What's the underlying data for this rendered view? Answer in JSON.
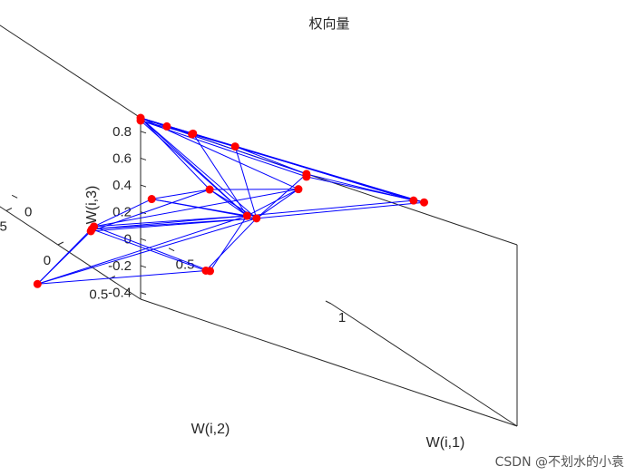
{
  "chart_data": {
    "type": "scatter",
    "subtype": "3d-scatter-with-network-lines",
    "title": "权向量",
    "xlabel": "W(i,1)",
    "ylabel": "W(i,2)",
    "zlabel": "W(i,3)",
    "xlim": [
      -0.2,
      1
    ],
    "ylim": [
      -1,
      0.8
    ],
    "zlim": [
      -0.45,
      0.9
    ],
    "x_ticks": [
      "0",
      "0.5",
      "1"
    ],
    "y_ticks": [
      "0.5",
      "0",
      "-0.5"
    ],
    "z_ticks": [
      "0.8",
      "0.6",
      "0.4",
      "0.2",
      "0",
      "-0.2",
      "-0.4"
    ],
    "x_tick_values": [
      0,
      0.5,
      1
    ],
    "y_tick_values": [
      0.5,
      0,
      -0.5
    ],
    "z_tick_values": [
      0.8,
      0.6,
      0.4,
      0.2,
      0,
      -0.2,
      -0.4
    ],
    "grid": false,
    "marker_color": "#ff0000",
    "line_color": "#0000ff",
    "points": [
      {
        "x": -0.2,
        "y": 0.8,
        "z": 0.9
      },
      {
        "x": -0.2,
        "y": 0.8,
        "z": 0.88
      },
      {
        "x": -0.1,
        "y": 0.75,
        "z": 0.89
      },
      {
        "x": 0.0,
        "y": 0.7,
        "z": 0.89
      },
      {
        "x": 0.0,
        "y": 0.69,
        "z": 0.88
      },
      {
        "x": 0.2,
        "y": 0.5,
        "z": 0.85
      },
      {
        "x": 0.5,
        "y": 0.28,
        "z": 0.77
      },
      {
        "x": 0.5,
        "y": 0.28,
        "z": 0.75
      },
      {
        "x": 0.55,
        "y": 0.05,
        "z": 0.58
      },
      {
        "x": 0.95,
        "y": -0.05,
        "z": 0.76
      },
      {
        "x": 1.0,
        "y": -0.1,
        "z": 0.76
      },
      {
        "x": 0.35,
        "y": 0.16,
        "z": 0.28
      },
      {
        "x": 0.4,
        "y": 0.1,
        "z": 0.27
      },
      {
        "x": 0.3,
        "y": -0.05,
        "z": 0.33
      },
      {
        "x": 0.0,
        "y": 0.3,
        "z": 0.2
      },
      {
        "x": -0.25,
        "y": 0.5,
        "z": -0.1
      },
      {
        "x": -0.25,
        "y": 0.48,
        "z": -0.13
      },
      {
        "x": -0.25,
        "y": 0.47,
        "z": -0.15
      },
      {
        "x": 0.4,
        "y": -0.35,
        "z": -0.35
      },
      {
        "x": 0.39,
        "y": -0.36,
        "z": -0.36
      },
      {
        "x": -0.15,
        "y": -0.35,
        "z": -0.88
      }
    ],
    "edges": [
      [
        0,
        2
      ],
      [
        0,
        3
      ],
      [
        0,
        5
      ],
      [
        0,
        6
      ],
      [
        0,
        8
      ],
      [
        0,
        9
      ],
      [
        0,
        10
      ],
      [
        0,
        11
      ],
      [
        0,
        12
      ],
      [
        0,
        13
      ],
      [
        1,
        4
      ],
      [
        1,
        7
      ],
      [
        1,
        11
      ],
      [
        2,
        3
      ],
      [
        3,
        4
      ],
      [
        4,
        5
      ],
      [
        5,
        6
      ],
      [
        6,
        7
      ],
      [
        6,
        9
      ],
      [
        7,
        10
      ],
      [
        3,
        9
      ],
      [
        4,
        10
      ],
      [
        3,
        11
      ],
      [
        5,
        12
      ],
      [
        6,
        12
      ],
      [
        8,
        11
      ],
      [
        8,
        12
      ],
      [
        9,
        11
      ],
      [
        10,
        12
      ],
      [
        12,
        13
      ],
      [
        11,
        13
      ],
      [
        13,
        14
      ],
      [
        14,
        11
      ],
      [
        14,
        12
      ],
      [
        13,
        8
      ],
      [
        15,
        11
      ],
      [
        16,
        12
      ],
      [
        17,
        13
      ],
      [
        15,
        8
      ],
      [
        16,
        11
      ],
      [
        17,
        12
      ],
      [
        15,
        14
      ],
      [
        18,
        11
      ],
      [
        19,
        12
      ],
      [
        18,
        15
      ],
      [
        19,
        16
      ],
      [
        20,
        17
      ],
      [
        20,
        11
      ],
      [
        20,
        12
      ],
      [
        20,
        19
      ],
      [
        20,
        15
      ]
    ]
  },
  "watermark": "CSDN @不划水的小袁"
}
